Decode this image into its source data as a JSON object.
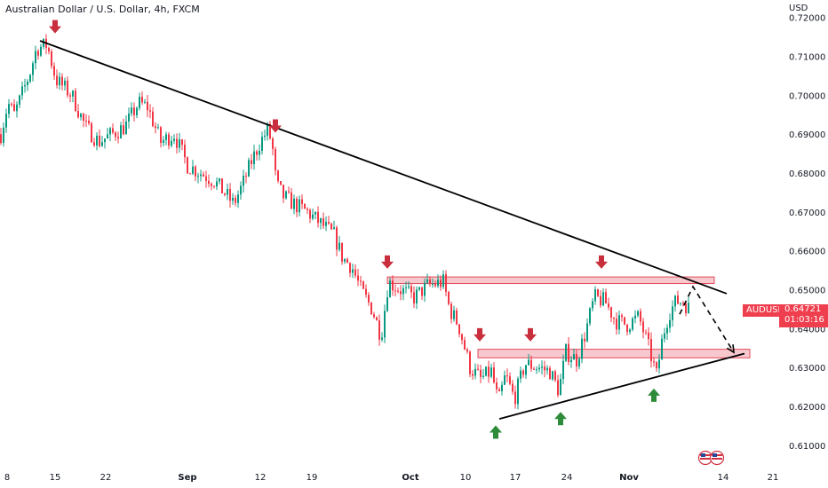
{
  "header": {
    "title": "Australian Dollar / U.S. Dollar, 4h, FXCM",
    "currency": "USD"
  },
  "price_tag": {
    "symbol": "AUDUSD",
    "price": "0.64721",
    "countdown": "01:03:16"
  },
  "colors": {
    "up": "#089981",
    "down": "#f23645",
    "zone_fill": "#f7c9cf",
    "zone_stroke": "#e04a5a",
    "arrow_down": "#c92e3c",
    "arrow_up": "#2e8b3a",
    "trendline": "#000000",
    "price_tag": "#ef3f4f"
  },
  "chart_data": {
    "type": "candlestick",
    "title": "Australian Dollar / U.S. Dollar, 4h, FXCM",
    "y_axis": {
      "unit": "USD",
      "ylim": [
        0.6045,
        0.7245
      ],
      "ticks": [
        "0.72000",
        "0.71000",
        "0.70000",
        "0.69000",
        "0.68000",
        "0.67000",
        "0.66000",
        "0.65000",
        "0.64000",
        "0.63000",
        "0.62000",
        "0.61000"
      ]
    },
    "x_axis": {
      "ticks": [
        {
          "label": "8",
          "bold": false
        },
        {
          "label": "15",
          "bold": false
        },
        {
          "label": "22",
          "bold": false
        },
        {
          "label": "Sep",
          "bold": true
        },
        {
          "label": "12",
          "bold": false
        },
        {
          "label": "19",
          "bold": false
        },
        {
          "label": "Oct",
          "bold": true
        },
        {
          "label": "10",
          "bold": false
        },
        {
          "label": "17",
          "bold": false
        },
        {
          "label": "24",
          "bold": false
        },
        {
          "label": "Nov",
          "bold": true
        },
        {
          "label": "14",
          "bold": false
        },
        {
          "label": "21",
          "bold": false
        }
      ]
    },
    "price_path": [
      {
        "t": 0,
        "p": 0.69
      },
      {
        "t": 8,
        "p": 0.698
      },
      {
        "t": 15,
        "p": 0.695
      },
      {
        "t": 25,
        "p": 0.701
      },
      {
        "t": 33,
        "p": 0.706
      },
      {
        "t": 40,
        "p": 0.712
      },
      {
        "t": 52,
        "p": 0.713
      },
      {
        "t": 62,
        "p": 0.704
      },
      {
        "t": 80,
        "p": 0.7
      },
      {
        "t": 95,
        "p": 0.692
      },
      {
        "t": 110,
        "p": 0.688
      },
      {
        "t": 125,
        "p": 0.69
      },
      {
        "t": 140,
        "p": 0.692
      },
      {
        "t": 155,
        "p": 0.698
      },
      {
        "t": 165,
        "p": 0.697
      },
      {
        "t": 180,
        "p": 0.688
      },
      {
        "t": 195,
        "p": 0.69
      },
      {
        "t": 210,
        "p": 0.682
      },
      {
        "t": 225,
        "p": 0.68
      },
      {
        "t": 240,
        "p": 0.678
      },
      {
        "t": 255,
        "p": 0.674
      },
      {
        "t": 262,
        "p": 0.672
      },
      {
        "t": 272,
        "p": 0.677
      },
      {
        "t": 282,
        "p": 0.683
      },
      {
        "t": 292,
        "p": 0.688
      },
      {
        "t": 300,
        "p": 0.691
      },
      {
        "t": 305,
        "p": 0.688
      },
      {
        "t": 310,
        "p": 0.677
      },
      {
        "t": 318,
        "p": 0.674
      },
      {
        "t": 330,
        "p": 0.672
      },
      {
        "t": 345,
        "p": 0.67
      },
      {
        "t": 360,
        "p": 0.667
      },
      {
        "t": 375,
        "p": 0.664
      },
      {
        "t": 385,
        "p": 0.658
      },
      {
        "t": 395,
        "p": 0.656
      },
      {
        "t": 405,
        "p": 0.65
      },
      {
        "t": 418,
        "p": 0.645
      },
      {
        "t": 428,
        "p": 0.638
      },
      {
        "t": 436,
        "p": 0.652
      },
      {
        "t": 450,
        "p": 0.65
      },
      {
        "t": 465,
        "p": 0.648
      },
      {
        "t": 480,
        "p": 0.651
      },
      {
        "t": 498,
        "p": 0.652
      },
      {
        "t": 505,
        "p": 0.645
      },
      {
        "t": 515,
        "p": 0.641
      },
      {
        "t": 528,
        "p": 0.63
      },
      {
        "t": 540,
        "p": 0.627
      },
      {
        "t": 552,
        "p": 0.629
      },
      {
        "t": 560,
        "p": 0.621
      },
      {
        "t": 568,
        "p": 0.628
      },
      {
        "t": 578,
        "p": 0.622
      },
      {
        "t": 590,
        "p": 0.631
      },
      {
        "t": 605,
        "p": 0.63
      },
      {
        "t": 618,
        "p": 0.629
      },
      {
        "t": 628,
        "p": 0.624
      },
      {
        "t": 636,
        "p": 0.634
      },
      {
        "t": 648,
        "p": 0.632
      },
      {
        "t": 658,
        "p": 0.639
      },
      {
        "t": 668,
        "p": 0.648
      },
      {
        "t": 680,
        "p": 0.647
      },
      {
        "t": 692,
        "p": 0.642
      },
      {
        "t": 705,
        "p": 0.641
      },
      {
        "t": 718,
        "p": 0.643
      },
      {
        "t": 728,
        "p": 0.636
      },
      {
        "t": 738,
        "p": 0.628
      },
      {
        "t": 745,
        "p": 0.638
      },
      {
        "t": 752,
        "p": 0.644
      },
      {
        "t": 760,
        "p": 0.647
      },
      {
        "t": 768,
        "p": 0.647
      },
      {
        "t": 775,
        "p": 0.645
      }
    ],
    "trendlines": [
      {
        "name": "descending-resistance",
        "t1": 45,
        "p1": 0.714,
        "t2": 818,
        "p2": 0.649,
        "style": "solid"
      },
      {
        "name": "ascending-support",
        "t1": 562,
        "p1": 0.6168,
        "t2": 838,
        "p2": 0.6336,
        "style": "solid"
      }
    ],
    "zones": [
      {
        "name": "resistance-zone",
        "t1": 436,
        "t2": 804,
        "top": 0.6533,
        "bottom": 0.6516
      },
      {
        "name": "support-zone",
        "t1": 538,
        "t2": 844,
        "top": 0.6347,
        "bottom": 0.6325
      }
    ],
    "projection": [
      {
        "t": 765,
        "p": 0.6437
      },
      {
        "t": 780,
        "p": 0.6508
      },
      {
        "t": 826,
        "p": 0.6339
      }
    ],
    "arrows": [
      {
        "dir": "down",
        "t": 62,
        "p": 0.7175
      },
      {
        "dir": "down",
        "t": 310,
        "p": 0.692
      },
      {
        "dir": "down",
        "t": 436,
        "p": 0.657
      },
      {
        "dir": "down",
        "t": 540,
        "p": 0.6383
      },
      {
        "dir": "down",
        "t": 597,
        "p": 0.6383
      },
      {
        "dir": "down",
        "t": 677,
        "p": 0.657
      },
      {
        "dir": "up",
        "t": 558,
        "p": 0.6135
      },
      {
        "dir": "up",
        "t": 631,
        "p": 0.617
      },
      {
        "dir": "up",
        "t": 736,
        "p": 0.623
      }
    ]
  }
}
